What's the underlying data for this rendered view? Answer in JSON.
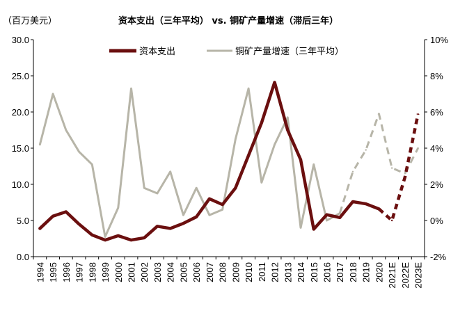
{
  "chart_data": {
    "type": "line",
    "title": "资本支出（三年平均）  vs. 铜矿产量增速（滞后三年）",
    "ylabel_left": "（百万美元）",
    "categories": [
      "1994",
      "1995",
      "1996",
      "1997",
      "1998",
      "1999",
      "2000",
      "2001",
      "2002",
      "2003",
      "2004",
      "2005",
      "2006",
      "2007",
      "2008",
      "2009",
      "2010",
      "2011",
      "2012",
      "2013",
      "2014",
      "2015",
      "2016",
      "2017",
      "2018",
      "2019",
      "2020",
      "2021E",
      "2022E",
      "2023E"
    ],
    "left_axis": {
      "min": 0,
      "max": 30,
      "step": 5,
      "tick_labels": [
        "0.0",
        "5.0",
        "10.0",
        "15.0",
        "20.0",
        "25.0",
        "30.0"
      ]
    },
    "right_axis": {
      "min": -2,
      "max": 10,
      "step": 2,
      "tick_labels": [
        "-2%",
        "0%",
        "2%",
        "4%",
        "6%",
        "8%",
        "10%"
      ]
    },
    "series": [
      {
        "name": "资本支出",
        "axis": "left",
        "color": "#6b0f0f",
        "values": [
          3.9,
          5.6,
          6.2,
          4.5,
          3.0,
          2.3,
          2.9,
          2.3,
          2.6,
          4.2,
          3.9,
          4.6,
          5.5,
          8.0,
          7.2,
          9.5,
          14.0,
          18.5,
          24.1,
          17.5,
          13.4,
          3.8,
          5.8,
          5.4,
          7.6,
          7.3,
          6.6,
          5.0,
          11.0,
          19.7
        ],
        "dashed_from_index": 26
      },
      {
        "name": "铜矿产量增速（三年平均）",
        "axis": "right",
        "color": "#b7b5a8",
        "values": [
          4.2,
          7.0,
          5.0,
          3.8,
          3.1,
          -0.9,
          0.7,
          7.3,
          1.8,
          1.5,
          2.7,
          0.3,
          1.8,
          0.3,
          0.6,
          4.5,
          7.3,
          2.1,
          4.2,
          5.7,
          -0.4,
          3.1,
          0.0,
          0.4,
          2.7,
          3.9,
          5.9,
          2.9,
          2.6,
          4.0
        ],
        "dashed_from_index": 23
      }
    ]
  }
}
